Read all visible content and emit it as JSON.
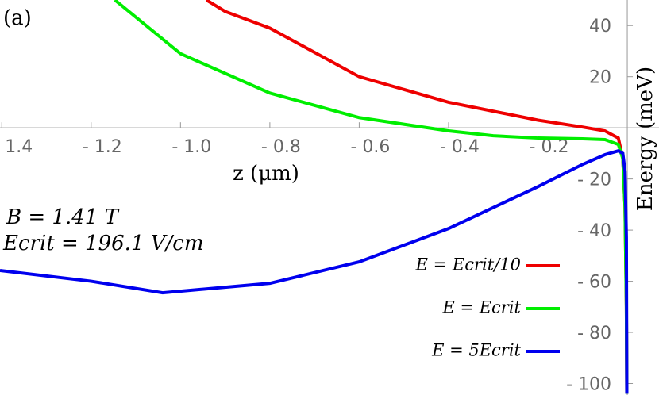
{
  "chart_data": {
    "type": "line",
    "panel_label": "(a)",
    "x_label": "z (μm)",
    "y_label": "Energy (meV)",
    "annotations": [
      "B = 1.41 T",
      "Ecrit = 196.1 V/cm"
    ],
    "xlim": [
      -1.404,
      0.071
    ],
    "ylim": [
      -104.5,
      50
    ],
    "xticks": [
      {
        "value": -1.4,
        "label": "- 1.4"
      },
      {
        "value": -1.2,
        "label": "- 1.2"
      },
      {
        "value": -1.0,
        "label": "- 1.0"
      },
      {
        "value": -0.8,
        "label": "- 0.8"
      },
      {
        "value": -0.6,
        "label": "- 0.6"
      },
      {
        "value": -0.4,
        "label": "- 0.4"
      },
      {
        "value": -0.2,
        "label": "- 0.2"
      }
    ],
    "yticks": [
      {
        "value": -100,
        "label": "- 100"
      },
      {
        "value": -80,
        "label": "- 80"
      },
      {
        "value": -60,
        "label": "- 60"
      },
      {
        "value": -40,
        "label": "- 40"
      },
      {
        "value": -20,
        "label": "- 20"
      },
      20,
      40
    ],
    "series": [
      {
        "name": "E = Ecrit/10",
        "color": "#ee0000",
        "x": [
          -0.942,
          -0.9,
          -0.8,
          -0.6,
          -0.4,
          -0.2,
          -0.1,
          -0.05,
          -0.02,
          -0.01,
          -0.005,
          -0.002,
          -0.001
        ],
        "values": [
          50,
          45.5,
          39,
          20,
          10,
          3,
          0.3,
          -1.2,
          -4,
          -12,
          -31,
          -70,
          -104
        ]
      },
      {
        "name": "E = Ecrit",
        "color": "#00ee00",
        "x": [
          -1.147,
          -1.0,
          -0.8,
          -0.6,
          -0.4,
          -0.3,
          -0.2,
          -0.1,
          -0.05,
          -0.02,
          -0.01,
          -0.005,
          -0.002,
          -0.001
        ],
        "values": [
          50,
          29,
          13.6,
          4,
          -1.2,
          -3.1,
          -4,
          -4.3,
          -4.6,
          -6.5,
          -12,
          -31,
          -70,
          -104
        ]
      },
      {
        "name": "E = 5Ecrit",
        "color": "#0000ee",
        "x": [
          -1.404,
          -1.2,
          -1.04,
          -0.8,
          -0.6,
          -0.4,
          -0.2,
          -0.1,
          -0.05,
          -0.02,
          -0.01,
          -0.005,
          -0.002,
          -0.001
        ],
        "values": [
          -55.8,
          -60,
          -64.5,
          -60.8,
          -52.4,
          -39.4,
          -23,
          -14.3,
          -10.5,
          -9,
          -10,
          -17,
          -43,
          -104
        ]
      }
    ]
  }
}
